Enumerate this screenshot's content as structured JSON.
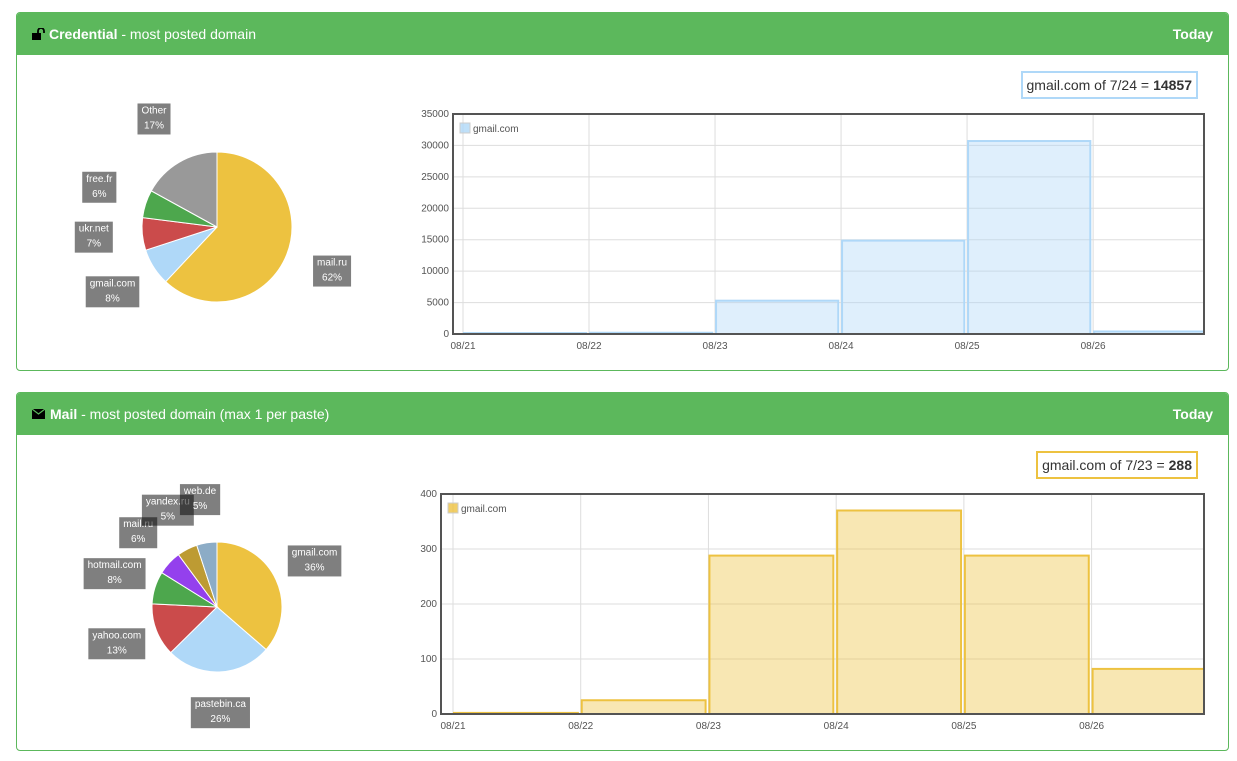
{
  "panels": [
    {
      "header": {
        "title": "Credential",
        "subtitle": "- most posted domain",
        "period": "Today"
      },
      "tooltip": {
        "text": "gmail.com of 7/24 =",
        "value": 14857
      },
      "pie": {
        "type": "pie",
        "categories": [
          "mail.ru",
          "gmail.com",
          "ukr.net",
          "free.fr",
          "Other"
        ],
        "values": [
          62,
          8,
          7,
          6,
          17
        ],
        "value_labels": [
          "62%",
          "8%",
          "7%",
          "6%",
          "17%"
        ],
        "colors": [
          "#edc240",
          "#afd8f8",
          "#cb4b4b",
          "#4da74d",
          "#999999"
        ]
      },
      "bar": {
        "type": "bar",
        "categories": [
          "08/21",
          "08/22",
          "08/23",
          "08/24",
          "08/25",
          "08/26"
        ],
        "series": [
          {
            "name": "gmail.com",
            "color": "#afd8f8",
            "values": [
              150,
              200,
              5300,
              14857,
              30700,
              400
            ]
          }
        ],
        "ylim": [
          0,
          35000
        ],
        "yticks": [
          0,
          5000,
          10000,
          15000,
          20000,
          25000,
          30000,
          35000
        ],
        "grid": true
      }
    },
    {
      "header": {
        "title": "Mail",
        "subtitle": "- most posted domain (max 1 per paste)",
        "period": "Today"
      },
      "tooltip": {
        "text": "gmail.com of 7/23 =",
        "value": 288
      },
      "pie": {
        "type": "pie",
        "categories": [
          "gmail.com",
          "pastebin.ca",
          "yahoo.com",
          "hotmail.com",
          "mail.ru",
          "yandex.ru",
          "web.de"
        ],
        "values": [
          36,
          26,
          13,
          8,
          6,
          5,
          5
        ],
        "value_labels": [
          "36%",
          "26%",
          "13%",
          "8%",
          "6%",
          "5%",
          "5%"
        ],
        "colors": [
          "#edc240",
          "#afd8f8",
          "#cb4b4b",
          "#4da74d",
          "#9440ed",
          "#bd9b33",
          "#8cacc6"
        ]
      },
      "bar": {
        "type": "bar",
        "categories": [
          "08/21",
          "08/22",
          "08/23",
          "08/24",
          "08/25",
          "08/26"
        ],
        "series": [
          {
            "name": "gmail.com",
            "color": "#edc240",
            "values": [
              2,
              25,
              288,
              370,
              288,
              82
            ]
          }
        ],
        "ylim": [
          0,
          400
        ],
        "yticks": [
          0,
          100,
          200,
          300,
          400
        ],
        "grid": true
      }
    }
  ]
}
